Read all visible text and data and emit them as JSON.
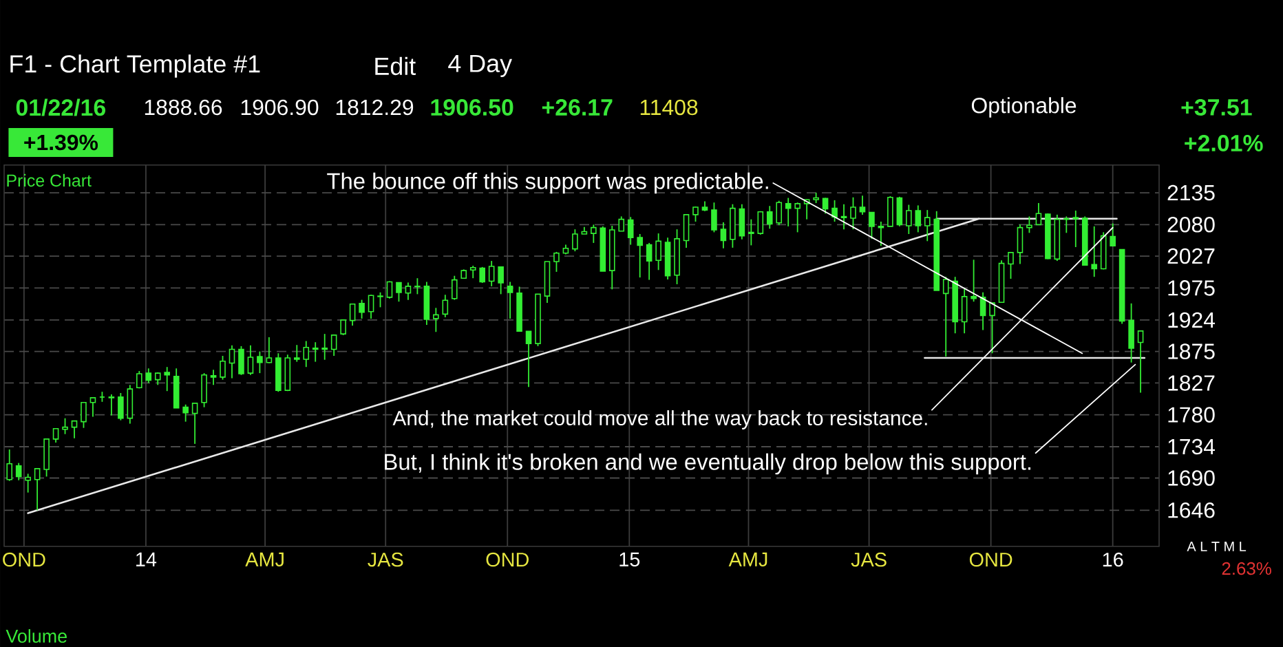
{
  "chart_data": {
    "type": "candlestick",
    "title": "Price Chart",
    "x": [
      "2013-09-20",
      "2013-09-27",
      "2013-10-04",
      "2013-10-11",
      "2013-10-18",
      "2013-10-25",
      "2013-11-01",
      "2013-11-08",
      "2013-11-15",
      "2013-11-22",
      "2013-11-29",
      "2013-12-06",
      "2013-12-13",
      "2013-12-20",
      "2013-12-27",
      "2014-01-03",
      "2014-01-10",
      "2014-01-17",
      "2014-01-24",
      "2014-01-31",
      "2014-02-07",
      "2014-02-14",
      "2014-02-21",
      "2014-02-28",
      "2014-03-07",
      "2014-03-14",
      "2014-03-21",
      "2014-03-28",
      "2014-04-04",
      "2014-04-11",
      "2014-04-18",
      "2014-04-25",
      "2014-05-02",
      "2014-05-09",
      "2014-05-16",
      "2014-05-23",
      "2014-05-30",
      "2014-06-06",
      "2014-06-13",
      "2014-06-20",
      "2014-06-27",
      "2014-07-04",
      "2014-07-11",
      "2014-07-18",
      "2014-07-25",
      "2014-08-01",
      "2014-08-08",
      "2014-08-15",
      "2014-08-22",
      "2014-08-29",
      "2014-09-05",
      "2014-09-12",
      "2014-09-19",
      "2014-09-26",
      "2014-10-03",
      "2014-10-10",
      "2014-10-17",
      "2014-10-24",
      "2014-10-31",
      "2014-11-07",
      "2014-11-14",
      "2014-11-21",
      "2014-11-28",
      "2014-12-05",
      "2014-12-12",
      "2014-12-19",
      "2014-12-26",
      "2015-01-02",
      "2015-01-09",
      "2015-01-16",
      "2015-01-23",
      "2015-01-30",
      "2015-02-06",
      "2015-02-13",
      "2015-02-20",
      "2015-02-27",
      "2015-03-06",
      "2015-03-13",
      "2015-03-20",
      "2015-03-27",
      "2015-04-03",
      "2015-04-10",
      "2015-04-17",
      "2015-04-24",
      "2015-05-01",
      "2015-05-08",
      "2015-05-15",
      "2015-05-22",
      "2015-05-29",
      "2015-06-05",
      "2015-06-12",
      "2015-06-19",
      "2015-06-26",
      "2015-07-03",
      "2015-07-10",
      "2015-07-17",
      "2015-07-24",
      "2015-07-31",
      "2015-08-07",
      "2015-08-14",
      "2015-08-21",
      "2015-08-28",
      "2015-09-04",
      "2015-09-11",
      "2015-09-18",
      "2015-09-25",
      "2015-10-02",
      "2015-10-09",
      "2015-10-16",
      "2015-10-23",
      "2015-10-30",
      "2015-11-06",
      "2015-11-13",
      "2015-11-20",
      "2015-11-27",
      "2015-12-04",
      "2015-12-11",
      "2015-12-18",
      "2015-12-25",
      "2016-01-01",
      "2016-01-08",
      "2016-01-15",
      "2016-01-22"
    ],
    "ohlc": [
      [
        1688,
        1730,
        1686,
        1710
      ],
      [
        1707,
        1711,
        1687,
        1692
      ],
      [
        1687,
        1696,
        1670,
        1691
      ],
      [
        1688,
        1704,
        1646,
        1703
      ],
      [
        1702,
        1745,
        1692,
        1745
      ],
      [
        1745,
        1760,
        1740,
        1760
      ],
      [
        1759,
        1775,
        1752,
        1762
      ],
      [
        1762,
        1771,
        1746,
        1771
      ],
      [
        1770,
        1798,
        1761,
        1798
      ],
      [
        1798,
        1805,
        1777,
        1805
      ],
      [
        1806,
        1814,
        1799,
        1806
      ],
      [
        1806,
        1810,
        1779,
        1805
      ],
      [
        1806,
        1812,
        1772,
        1775
      ],
      [
        1775,
        1824,
        1767,
        1818
      ],
      [
        1820,
        1845,
        1819,
        1841
      ],
      [
        1842,
        1849,
        1827,
        1831
      ],
      [
        1832,
        1843,
        1824,
        1842
      ],
      [
        1843,
        1851,
        1815,
        1839
      ],
      [
        1837,
        1849,
        1790,
        1790
      ],
      [
        1791,
        1795,
        1770,
        1783
      ],
      [
        1782,
        1797,
        1738,
        1797
      ],
      [
        1798,
        1842,
        1791,
        1839
      ],
      [
        1838,
        1847,
        1824,
        1836
      ],
      [
        1836,
        1868,
        1832,
        1860
      ],
      [
        1857,
        1884,
        1834,
        1878
      ],
      [
        1878,
        1883,
        1839,
        1841
      ],
      [
        1842,
        1884,
        1839,
        1866
      ],
      [
        1867,
        1875,
        1842,
        1858
      ],
      [
        1858,
        1897,
        1857,
        1865
      ],
      [
        1865,
        1872,
        1814,
        1816
      ],
      [
        1816,
        1870,
        1815,
        1865
      ],
      [
        1865,
        1885,
        1859,
        1863
      ],
      [
        1863,
        1891,
        1851,
        1881
      ],
      [
        1880,
        1889,
        1859,
        1878
      ],
      [
        1880,
        1902,
        1862,
        1878
      ],
      [
        1878,
        1901,
        1868,
        1900
      ],
      [
        1902,
        1924,
        1900,
        1924
      ],
      [
        1923,
        1949,
        1915,
        1949
      ],
      [
        1950,
        1956,
        1926,
        1936
      ],
      [
        1937,
        1964,
        1926,
        1963
      ],
      [
        1962,
        1968,
        1944,
        1961
      ],
      [
        1960,
        1986,
        1958,
        1985
      ],
      [
        1984,
        1984,
        1953,
        1968
      ],
      [
        1967,
        1984,
        1956,
        1978
      ],
      [
        1977,
        1991,
        1965,
        1978
      ],
      [
        1978,
        1985,
        1916,
        1925
      ],
      [
        1926,
        1943,
        1905,
        1932
      ],
      [
        1933,
        1964,
        1928,
        1955
      ],
      [
        1958,
        1995,
        1956,
        1988
      ],
      [
        1991,
        2005,
        1990,
        2003
      ],
      [
        2004,
        2011,
        1991,
        2008
      ],
      [
        2007,
        2009,
        1983,
        1985
      ],
      [
        1986,
        2019,
        1978,
        2010
      ],
      [
        2009,
        2009,
        1965,
        1983
      ],
      [
        1978,
        1985,
        1926,
        1968
      ],
      [
        1967,
        1977,
        1906,
        1906
      ],
      [
        1906,
        1906,
        1821,
        1887
      ],
      [
        1887,
        1965,
        1883,
        1965
      ],
      [
        1962,
        2018,
        1951,
        2018
      ],
      [
        2018,
        2034,
        2001,
        2032
      ],
      [
        2032,
        2046,
        2030,
        2040
      ],
      [
        2039,
        2072,
        2035,
        2064
      ],
      [
        2064,
        2076,
        2064,
        2068
      ],
      [
        2065,
        2080,
        2049,
        2075
      ],
      [
        2074,
        2077,
        2002,
        2002
      ],
      [
        2003,
        2078,
        1973,
        2071
      ],
      [
        2069,
        2094,
        2069,
        2089
      ],
      [
        2088,
        2093,
        2046,
        2058
      ],
      [
        2058,
        2064,
        1992,
        2045
      ],
      [
        2046,
        2049,
        1988,
        2019
      ],
      [
        2020,
        2065,
        2004,
        2052
      ],
      [
        2050,
        2058,
        1989,
        1995
      ],
      [
        1996,
        2072,
        1981,
        2056
      ],
      [
        2053,
        2097,
        2041,
        2097
      ],
      [
        2097,
        2111,
        2085,
        2110
      ],
      [
        2110,
        2120,
        2103,
        2105
      ],
      [
        2105,
        2118,
        2067,
        2071
      ],
      [
        2072,
        2084,
        2040,
        2053
      ],
      [
        2055,
        2115,
        2041,
        2108
      ],
      [
        2107,
        2115,
        2055,
        2061
      ],
      [
        2065,
        2089,
        2045,
        2067
      ],
      [
        2065,
        2103,
        2063,
        2102
      ],
      [
        2102,
        2112,
        2073,
        2081
      ],
      [
        2083,
        2121,
        2079,
        2118
      ],
      [
        2116,
        2126,
        2077,
        2108
      ],
      [
        2108,
        2118,
        2067,
        2116
      ],
      [
        2116,
        2124,
        2089,
        2123
      ],
      [
        2123,
        2135,
        2117,
        2126
      ],
      [
        2125,
        2126,
        2099,
        2107
      ],
      [
        2108,
        2122,
        2085,
        2093
      ],
      [
        2092,
        2115,
        2072,
        2094
      ],
      [
        2091,
        2127,
        2072,
        2110
      ],
      [
        2110,
        2130,
        2097,
        2102
      ],
      [
        2101,
        2101,
        2056,
        2077
      ],
      [
        2075,
        2085,
        2044,
        2077
      ],
      [
        2077,
        2129,
        2077,
        2127
      ],
      [
        2126,
        2128,
        2077,
        2080
      ],
      [
        2078,
        2114,
        2064,
        2104
      ],
      [
        2104,
        2113,
        2067,
        2078
      ],
      [
        2078,
        2105,
        2052,
        2092
      ],
      [
        2089,
        2103,
        1971,
        1971
      ],
      [
        1966,
        1993,
        1867,
        1989
      ],
      [
        1986,
        1993,
        1903,
        1921
      ],
      [
        1921,
        1975,
        1903,
        1961
      ],
      [
        1961,
        2021,
        1953,
        1958
      ],
      [
        1960,
        1968,
        1908,
        1931
      ],
      [
        1931,
        1951,
        1872,
        1951
      ],
      [
        1952,
        2020,
        1951,
        2015
      ],
      [
        2014,
        2034,
        1990,
        2033
      ],
      [
        2033,
        2080,
        2014,
        2075
      ],
      [
        2075,
        2094,
        2066,
        2079
      ],
      [
        2080,
        2117,
        2080,
        2099
      ],
      [
        2098,
        2099,
        2022,
        2023
      ],
      [
        2022,
        2097,
        2019,
        2089
      ],
      [
        2089,
        2094,
        2066,
        2090
      ],
      [
        2090,
        2104,
        2042,
        2092
      ],
      [
        2091,
        2094,
        2012,
        2012
      ],
      [
        2013,
        2077,
        1993,
        2006
      ],
      [
        2006,
        2067,
        2005,
        2061
      ],
      [
        2060,
        2082,
        2043,
        2044
      ],
      [
        2038,
        2038,
        1918,
        1922
      ],
      [
        1923,
        1950,
        1858,
        1880
      ],
      [
        1888.66,
        1906.9,
        1812.29,
        1906.5
      ]
    ],
    "color": "#33ee33",
    "series": [
      {
        "type": "line",
        "color": "#e8e8e8",
        "x": [
          "2013-10-04",
          "2015-09-22"
        ],
        "values": [
          1642,
          2090
        ]
      },
      {
        "type": "line",
        "color": "#e8e8e8",
        "x": [
          "2015-08-21",
          "2016-01-04"
        ],
        "values": [
          2090,
          2090
        ]
      },
      {
        "type": "line",
        "color": "#e8e8e8",
        "x": [
          "2015-08-12",
          "2016-01-25"
        ],
        "values": [
          1865,
          1865
        ]
      }
    ],
    "log": true,
    "xlim": [
      "2013-09-16",
      "2016-02-05"
    ],
    "xticks": [
      {
        "value": "2013-10-01",
        "label": "OND"
      },
      {
        "value": "2014-01-01",
        "label": "14"
      },
      {
        "value": "2014-04-01",
        "label": "AMJ"
      },
      {
        "value": "2014-07-01",
        "label": "JAS"
      },
      {
        "value": "2014-10-01",
        "label": "OND"
      },
      {
        "value": "2015-01-01",
        "label": "15"
      },
      {
        "value": "2015-04-01",
        "label": "AMJ"
      },
      {
        "value": "2015-07-01",
        "label": "JAS"
      },
      {
        "value": "2015-10-01",
        "label": "OND"
      },
      {
        "value": "2016-01-01",
        "label": "16"
      }
    ],
    "ylim": [
      1598,
      2184
    ],
    "yticks": [
      1646,
      1690,
      1734,
      1780,
      1827,
      1875,
      1924,
      1975,
      2027,
      2080,
      2135
    ],
    "grid": true,
    "annotations": [
      "F1 - Chart Template #1",
      "Edit",
      "4 Day",
      "01/22/16",
      "1888.66",
      "1906.90",
      "1812.29",
      "1906.50",
      "+26.17",
      "11408",
      "Optionable",
      "+37.51",
      "+1.39%",
      "+2.01%",
      {
        "text": "The bounce off this support was predictable.",
        "x": "2015-12-09",
        "y": 1872
      },
      {
        "text": "And, the market could move all the way back to resistance.",
        "x": "2016-01-01",
        "y": 2075
      },
      {
        "text": "But, I think it's broken and we eventually drop below this support.",
        "x": "2016-01-18",
        "y": 1855
      },
      "A L T M L",
      "2.63%",
      "Volume"
    ]
  }
}
